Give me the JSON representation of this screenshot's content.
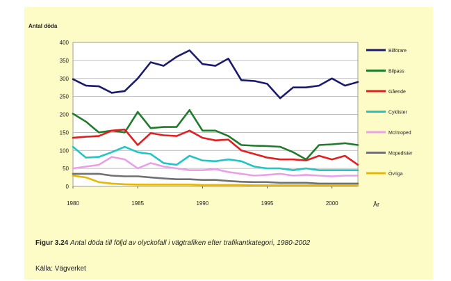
{
  "chart_data": {
    "type": "line",
    "ylabel": "Antal döda",
    "xlabel": "År",
    "ylim": [
      0,
      400
    ],
    "yticks": [
      0,
      50,
      100,
      150,
      200,
      250,
      300,
      350,
      400
    ],
    "xlim": [
      1980,
      2002
    ],
    "xticks": [
      1980,
      1985,
      1990,
      1995,
      2000
    ],
    "grid": true,
    "legend_position": "right",
    "x": [
      1980,
      1981,
      1982,
      1983,
      1984,
      1985,
      1986,
      1987,
      1988,
      1989,
      1990,
      1991,
      1992,
      1993,
      1994,
      1995,
      1996,
      1997,
      1998,
      1999,
      2000,
      2001,
      2002
    ],
    "series": [
      {
        "name": "Bilförare",
        "color": "#1a1a6e",
        "values": [
          298,
          280,
          278,
          260,
          265,
          300,
          345,
          335,
          360,
          378,
          340,
          335,
          355,
          295,
          293,
          285,
          245,
          275,
          275,
          280,
          300,
          280,
          290
        ]
      },
      {
        "name": "Bilpass",
        "color": "#1f7a2a",
        "values": [
          202,
          180,
          150,
          155,
          150,
          207,
          162,
          165,
          165,
          212,
          155,
          155,
          140,
          115,
          113,
          112,
          110,
          95,
          75,
          115,
          117,
          120,
          115
        ]
      },
      {
        "name": "Gående",
        "color": "#e02020",
        "values": [
          135,
          138,
          140,
          155,
          158,
          115,
          148,
          142,
          140,
          155,
          135,
          128,
          130,
          100,
          90,
          80,
          75,
          75,
          72,
          85,
          75,
          85,
          60
        ]
      },
      {
        "name": "Cyklister",
        "color": "#22c4c4",
        "values": [
          110,
          80,
          82,
          95,
          110,
          95,
          90,
          65,
          60,
          85,
          72,
          70,
          75,
          70,
          55,
          50,
          50,
          45,
          50,
          45,
          45,
          45,
          45
        ]
      },
      {
        "name": "Mc/moped",
        "color": "#e8a0e8",
        "values": [
          50,
          55,
          60,
          82,
          75,
          50,
          65,
          55,
          50,
          45,
          45,
          48,
          40,
          35,
          30,
          32,
          35,
          30,
          32,
          30,
          28,
          30,
          30
        ]
      },
      {
        "name": "Mopedister",
        "color": "#707070",
        "values": [
          35,
          35,
          35,
          30,
          28,
          28,
          25,
          22,
          20,
          20,
          18,
          18,
          15,
          13,
          12,
          12,
          10,
          10,
          10,
          8,
          8,
          8,
          8
        ]
      },
      {
        "name": "Övriga",
        "color": "#e8b800",
        "values": [
          30,
          25,
          12,
          8,
          6,
          5,
          5,
          5,
          5,
          5,
          4,
          4,
          4,
          4,
          3,
          3,
          3,
          3,
          3,
          3,
          3,
          3,
          3
        ]
      }
    ]
  },
  "caption": {
    "number": "Figur 3.24",
    "text": "Antal döda till följd av olyckofall i vägtrafiken efter trafikantkategori, 1980-2002"
  },
  "source": "Källa: Vägverket"
}
